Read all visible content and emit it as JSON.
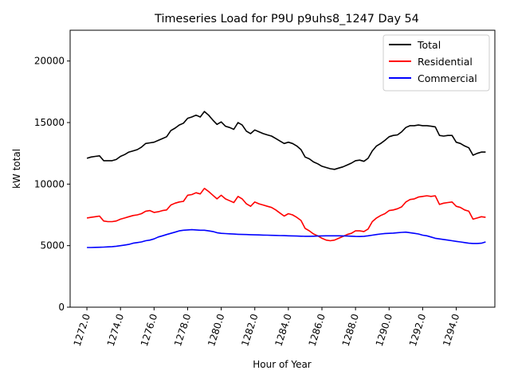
{
  "chart_data": {
    "type": "line",
    "title": "Timeseries Load for P9U p9uhs8_1247  Day 54",
    "xlabel": "Hour of Year",
    "ylabel": "kW total",
    "xlim": [
      1271.0,
      1296.3
    ],
    "ylim": [
      0,
      22500
    ],
    "xticks": [
      1272,
      1274,
      1276,
      1278,
      1280,
      1282,
      1284,
      1286,
      1288,
      1290,
      1292,
      1294
    ],
    "xtick_labels": [
      "1272.0",
      "1274.0",
      "1276.0",
      "1278.0",
      "1280.0",
      "1282.0",
      "1284.0",
      "1286.0",
      "1288.0",
      "1290.0",
      "1292.0",
      "1294.0"
    ],
    "yticks": [
      0,
      5000,
      10000,
      15000,
      20000
    ],
    "ytick_labels": [
      "0",
      "5000",
      "10000",
      "15000",
      "20000"
    ],
    "grid": false,
    "legend_position": "top-right",
    "x": [
      1272.0,
      1272.25,
      1272.5,
      1272.75,
      1273.0,
      1273.25,
      1273.5,
      1273.75,
      1274.0,
      1274.25,
      1274.5,
      1274.75,
      1275.0,
      1275.25,
      1275.5,
      1275.75,
      1276.0,
      1276.25,
      1276.5,
      1276.75,
      1277.0,
      1277.25,
      1277.5,
      1277.75,
      1278.0,
      1278.25,
      1278.5,
      1278.75,
      1279.0,
      1279.25,
      1279.5,
      1279.75,
      1280.0,
      1280.25,
      1280.5,
      1280.75,
      1281.0,
      1281.25,
      1281.5,
      1281.75,
      1282.0,
      1282.25,
      1282.5,
      1282.75,
      1283.0,
      1283.25,
      1283.5,
      1283.75,
      1284.0,
      1284.25,
      1284.5,
      1284.75,
      1285.0,
      1285.25,
      1285.5,
      1285.75,
      1286.0,
      1286.25,
      1286.5,
      1286.75,
      1287.0,
      1287.25,
      1287.5,
      1287.75,
      1288.0,
      1288.25,
      1288.5,
      1288.75,
      1289.0,
      1289.25,
      1289.5,
      1289.75,
      1290.0,
      1290.25,
      1290.5,
      1290.75,
      1291.0,
      1291.25,
      1291.5,
      1291.75,
      1292.0,
      1292.25,
      1292.5,
      1292.75,
      1293.0,
      1293.25,
      1293.5,
      1293.75,
      1294.0,
      1294.25,
      1294.5,
      1294.75,
      1295.0,
      1295.25,
      1295.5,
      1295.75
    ],
    "series": [
      {
        "name": "Total",
        "color": "#000000",
        "values": [
          12100,
          12200,
          12250,
          12300,
          11900,
          11900,
          11900,
          12000,
          12250,
          12400,
          12600,
          12700,
          12800,
          13000,
          13300,
          13350,
          13400,
          13550,
          13700,
          13850,
          14350,
          14550,
          14800,
          14950,
          15350,
          15450,
          15600,
          15450,
          15900,
          15600,
          15200,
          14850,
          15050,
          14700,
          14600,
          14450,
          15000,
          14800,
          14300,
          14100,
          14400,
          14250,
          14100,
          14000,
          13900,
          13700,
          13500,
          13300,
          13400,
          13300,
          13100,
          12800,
          12200,
          12050,
          11800,
          11650,
          11450,
          11350,
          11250,
          11200,
          11300,
          11400,
          11550,
          11700,
          11900,
          11950,
          11850,
          12100,
          12700,
          13100,
          13300,
          13550,
          13850,
          13950,
          14000,
          14250,
          14600,
          14750,
          14750,
          14800,
          14750,
          14750,
          14700,
          14650,
          13950,
          13900,
          13950,
          13950,
          13400,
          13300,
          13100,
          12950,
          12350,
          12500,
          12600,
          12600
        ]
      },
      {
        "name": "Residential",
        "color": "#ff0000",
        "values": [
          7250,
          7300,
          7350,
          7400,
          7000,
          6950,
          6950,
          7000,
          7150,
          7250,
          7350,
          7450,
          7500,
          7600,
          7800,
          7850,
          7700,
          7750,
          7850,
          7900,
          8300,
          8450,
          8550,
          8600,
          9100,
          9150,
          9300,
          9200,
          9650,
          9400,
          9100,
          8800,
          9100,
          8800,
          8650,
          8500,
          9000,
          8800,
          8400,
          8200,
          8550,
          8400,
          8300,
          8200,
          8100,
          7900,
          7650,
          7400,
          7600,
          7500,
          7300,
          7050,
          6400,
          6200,
          5950,
          5800,
          5600,
          5450,
          5400,
          5450,
          5600,
          5750,
          5900,
          6000,
          6200,
          6200,
          6150,
          6350,
          6950,
          7250,
          7450,
          7600,
          7850,
          7900,
          8000,
          8150,
          8550,
          8750,
          8800,
          8950,
          9000,
          9050,
          9000,
          9050,
          8350,
          8450,
          8500,
          8550,
          8200,
          8100,
          7900,
          7800,
          7150,
          7250,
          7350,
          7300
        ]
      },
      {
        "name": "Commercial",
        "color": "#0000ff",
        "values": [
          4850,
          4850,
          4860,
          4870,
          4880,
          4900,
          4920,
          4950,
          5000,
          5050,
          5100,
          5200,
          5250,
          5300,
          5400,
          5450,
          5550,
          5700,
          5800,
          5900,
          6000,
          6100,
          6200,
          6250,
          6280,
          6300,
          6280,
          6250,
          6250,
          6200,
          6150,
          6050,
          6000,
          5980,
          5960,
          5940,
          5920,
          5910,
          5900,
          5890,
          5880,
          5870,
          5860,
          5850,
          5840,
          5830,
          5820,
          5810,
          5800,
          5790,
          5780,
          5770,
          5760,
          5760,
          5770,
          5780,
          5790,
          5800,
          5800,
          5800,
          5800,
          5790,
          5780,
          5770,
          5750,
          5740,
          5760,
          5800,
          5850,
          5900,
          5950,
          5990,
          6000,
          6020,
          6050,
          6080,
          6100,
          6050,
          6000,
          5950,
          5850,
          5800,
          5700,
          5600,
          5550,
          5500,
          5450,
          5400,
          5350,
          5300,
          5250,
          5200,
          5180,
          5180,
          5200,
          5300
        ]
      }
    ]
  }
}
